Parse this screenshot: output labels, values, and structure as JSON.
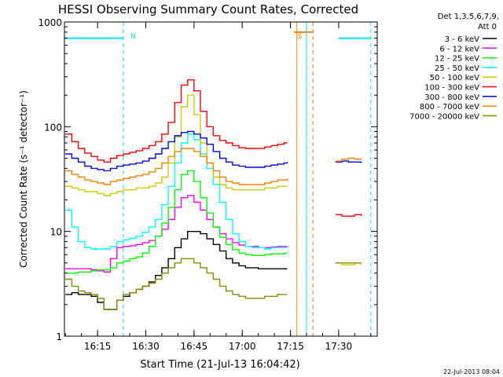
{
  "chart_data": {
    "type": "line",
    "title": "HESSI Observing Summary Count Rates, Corrected",
    "xlabel": "Start Time (21-Jul-13 16:04:42)",
    "ylabel": "Corrected Count Rate (s⁻¹ detector⁻¹)",
    "xlim": [
      "16:04:42",
      "17:42:00"
    ],
    "ylim": [
      1,
      1000
    ],
    "yscale": "log",
    "x_ticks": [
      "16:15",
      "16:30",
      "16:45",
      "17:00",
      "17:15",
      "17:30"
    ],
    "y_ticks": [
      "1",
      "10",
      "100",
      "1000"
    ],
    "legend_title": [
      "Det 1,3,5,6,7,9,",
      "Att 0"
    ],
    "legend_placement": "right",
    "timestamp": "22-Jul-2013 08:04",
    "annotations": [
      {
        "text": "N",
        "color": "#00e5ee",
        "x": "16:24"
      },
      {
        "text": "S",
        "color": "#ff8000",
        "x": "17:16"
      }
    ],
    "flags": [
      {
        "name": "night",
        "color": "#00e5ee",
        "x_start": "16:04:42",
        "x_end": "16:23",
        "y": 700
      },
      {
        "name": "night",
        "color": "#00e5ee",
        "x_start": "17:30",
        "x_end": "17:40",
        "y": 700
      },
      {
        "name": "saa",
        "color": "#ff8000",
        "x_start": "17:16",
        "x_end": "17:22",
        "y": 800
      }
    ],
    "vlines": [
      {
        "x": "16:23",
        "color": "#00e5ee",
        "style": "dashed"
      },
      {
        "x": "17:17",
        "color": "#ff8000",
        "style": "solid"
      },
      {
        "x": "17:20",
        "color": "#00e5ee",
        "style": "solid"
      },
      {
        "x": "17:22",
        "color": "#ff8000",
        "style": "dashed"
      },
      {
        "x": "17:40",
        "color": "#00e5ee",
        "style": "dashed"
      }
    ],
    "x_minutes": [
      5,
      7,
      9,
      11,
      13,
      15,
      17,
      19,
      21,
      23,
      25,
      27,
      29,
      31,
      33,
      35,
      37,
      39,
      41,
      43,
      45,
      47,
      49,
      51,
      53,
      55,
      57,
      59,
      61,
      63,
      65,
      67,
      69,
      71,
      73,
      74,
      89,
      91,
      93,
      95,
      97
    ],
    "series": [
      {
        "name": "3 - 6 keV",
        "color": "#000000",
        "values": [
          2.5,
          2.6,
          2.5,
          2.5,
          2.4,
          2.1,
          1.8,
          1.8,
          2.2,
          2.4,
          2.6,
          2.8,
          3.0,
          3.3,
          3.8,
          4.5,
          5.5,
          7.0,
          8.5,
          10,
          10,
          9.5,
          8.5,
          7.5,
          6.5,
          5.5,
          5.0,
          4.7,
          4.5,
          4.5,
          4.4,
          4.4,
          4.4,
          4.4,
          4.4,
          4.4,
          null,
          null,
          null,
          null,
          null
        ]
      },
      {
        "name": "6 - 12 keV",
        "color": "#ff00ff",
        "values": [
          4.4,
          4.4,
          4.4,
          4.4,
          4.3,
          4.2,
          4.1,
          5.5,
          7.0,
          7.2,
          7.3,
          7.5,
          7.8,
          8.2,
          9.0,
          10.5,
          13,
          17,
          21,
          22,
          19,
          16,
          13,
          11,
          9.5,
          8.5,
          7.8,
          7.4,
          7.2,
          7.2,
          7.0,
          7.0,
          7.1,
          7.2,
          7.2,
          7.2,
          null,
          null,
          null,
          null,
          null
        ]
      },
      {
        "name": "12 - 25 keV",
        "color": "#00ff00",
        "values": [
          4.0,
          4.0,
          4.1,
          4.1,
          4.2,
          4.3,
          4.3,
          4.5,
          5.0,
          5.2,
          5.5,
          5.7,
          6.2,
          7.2,
          9.0,
          12,
          17,
          25,
          35,
          38,
          30,
          21,
          15,
          11,
          8.8,
          7.5,
          6.7,
          6.2,
          6.0,
          5.9,
          5.9,
          6.0,
          6.1,
          6.1,
          6.2,
          6.2,
          null,
          null,
          null,
          null,
          null
        ]
      },
      {
        "name": "25 - 50 keV",
        "color": "#00ffff",
        "values": [
          16,
          11,
          8.0,
          7.0,
          6.8,
          6.8,
          6.8,
          7.2,
          8.0,
          8.3,
          8.6,
          9.0,
          9.8,
          11,
          13,
          18,
          27,
          45,
          70,
          85,
          75,
          55,
          40,
          28,
          19,
          13,
          9.5,
          8.0,
          7.2,
          7.0,
          7.0,
          6.8,
          7.0,
          7.0,
          7.0,
          7.0,
          null,
          null,
          null,
          null,
          null
        ]
      },
      {
        "name": "50 - 100 keV",
        "color": "#cccc00",
        "values": [
          27,
          26,
          25,
          24,
          24,
          23,
          22,
          23,
          24,
          25,
          25,
          26,
          26,
          27,
          29,
          33,
          45,
          80,
          155,
          200,
          130,
          70,
          45,
          33,
          28,
          26,
          25,
          25,
          25,
          25,
          25,
          26,
          26,
          27,
          27,
          27,
          5.0,
          4.8,
          4.8,
          5.0,
          4.8
        ]
      },
      {
        "name": "100 - 300 keV",
        "color": "#ff0000",
        "values": [
          85,
          72,
          62,
          56,
          52,
          48,
          46,
          50,
          53,
          55,
          57,
          59,
          62,
          66,
          72,
          85,
          110,
          170,
          250,
          280,
          220,
          140,
          100,
          82,
          74,
          70,
          66,
          63,
          62,
          62,
          62,
          64,
          66,
          68,
          70,
          70,
          14.5,
          14.0,
          14.0,
          14.5,
          14.0
        ]
      },
      {
        "name": "300 - 800 keV",
        "color": "#0000ff",
        "values": [
          55,
          50,
          46,
          42,
          40,
          39,
          38,
          40,
          42,
          43,
          44,
          45,
          47,
          50,
          55,
          62,
          72,
          82,
          88,
          90,
          85,
          78,
          68,
          58,
          50,
          46,
          43,
          42,
          41,
          41,
          41,
          42,
          43,
          44,
          45,
          46,
          46,
          47,
          46,
          46,
          45
        ]
      },
      {
        "name": "800 - 7000 keV",
        "color": "#ff8000",
        "values": [
          38,
          35,
          33,
          31,
          30,
          29,
          28,
          30,
          31,
          32,
          33,
          34,
          35,
          37,
          40,
          45,
          52,
          58,
          62,
          62,
          58,
          52,
          45,
          38,
          33,
          30,
          29,
          28,
          28,
          28,
          28,
          29,
          30,
          31,
          31,
          32,
          47,
          49,
          50,
          49,
          48
        ]
      },
      {
        "name": "7000 - 20000 keV",
        "color": "#8b8b00",
        "values": [
          3.5,
          3.0,
          2.7,
          2.6,
          2.5,
          2.3,
          1.8,
          1.8,
          2.2,
          2.5,
          2.6,
          2.8,
          3.0,
          3.2,
          3.5,
          4.0,
          4.5,
          5.0,
          5.5,
          5.5,
          5.0,
          4.5,
          4.0,
          3.5,
          3.0,
          2.7,
          2.5,
          2.4,
          2.3,
          2.3,
          2.3,
          2.4,
          2.4,
          2.5,
          2.5,
          2.5,
          5.0,
          5.0,
          5.0,
          5.0,
          5.0
        ]
      }
    ]
  }
}
